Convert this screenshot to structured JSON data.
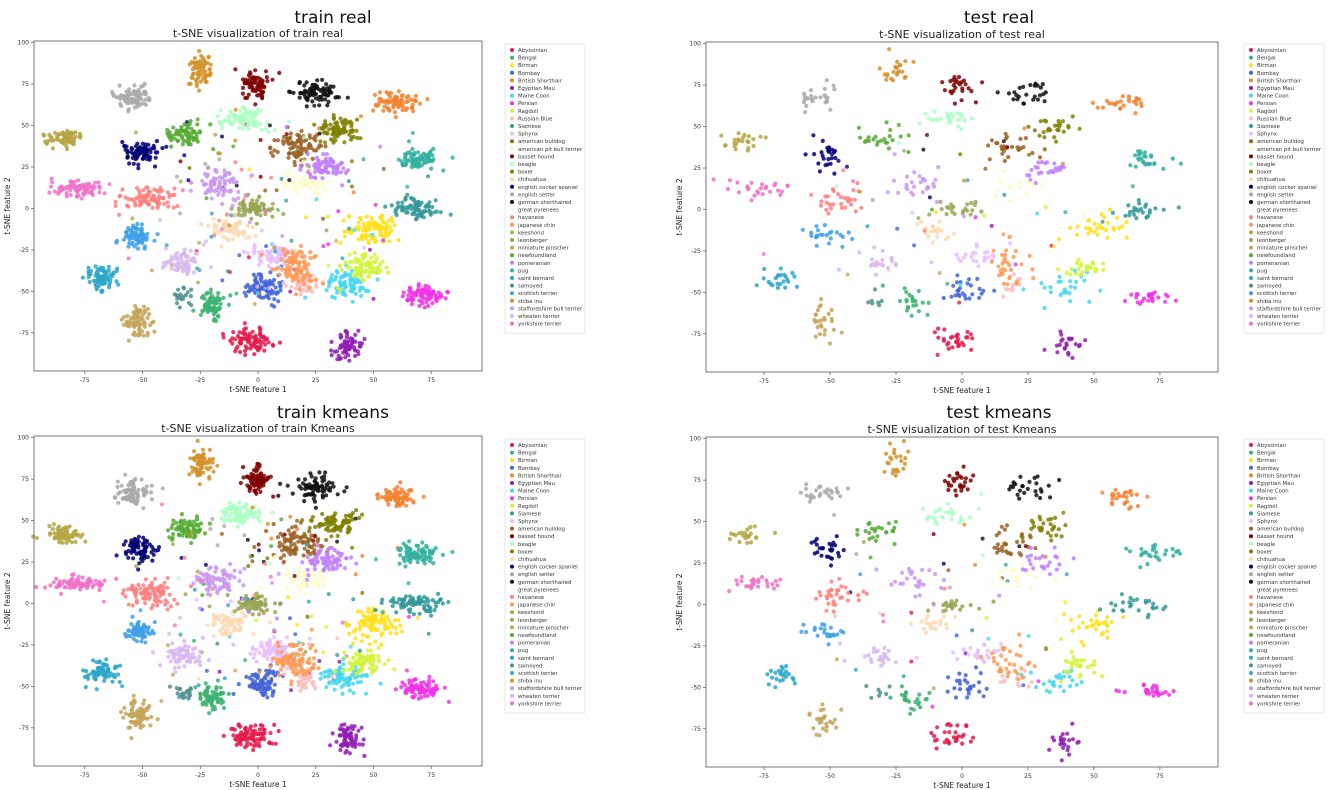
{
  "chart_data": [
    {
      "type": "scatter",
      "panel_title": "train real",
      "title": "t-SNE visualization of train real",
      "xlabel": "t-SNE feature 1",
      "ylabel": "t-SNE feature 2",
      "xlim": [
        -97,
        97
      ],
      "ylim": [
        -98,
        101
      ],
      "xticks": [
        -75,
        -50,
        -25,
        0,
        25,
        50,
        75
      ],
      "yticks": [
        -75,
        -50,
        -25,
        0,
        25,
        50,
        75,
        100
      ],
      "legend_position": "outside-right",
      "legend": [
        "Abyssinian",
        "Bengal",
        "Birman",
        "Bombay",
        "British Shorthair",
        "Egyptian Mau",
        "Maine Coon",
        "Persian",
        "Ragdoll",
        "Russian Blue",
        "Siamese",
        "Sphynx",
        "american bulldog",
        "american pit bull terrier",
        "basset hound",
        "beagle",
        "boxer",
        "chihuahua",
        "english cocker spaniel",
        "english setter",
        "german shorthaired",
        "great pyrenees",
        "havanese",
        "japanese chin",
        "keeshond",
        "leonberger",
        "miniature pinscher",
        "newfoundland",
        "pomeranian",
        "pug",
        "saint bernard",
        "samoyed",
        "scottish terrier",
        "shiba inu",
        "staffordshire bull terrier",
        "wheaten terrier",
        "yorkshire terrier"
      ]
    },
    {
      "type": "scatter",
      "panel_title": "test real",
      "title": "t-SNE visualization of test real",
      "xlabel": "t-SNE feature 1",
      "ylabel": "t-SNE feature 2",
      "xlim": [
        -97,
        97
      ],
      "ylim": [
        -98,
        101
      ],
      "xticks": [
        -75,
        -50,
        -25,
        0,
        25,
        50,
        75
      ],
      "yticks": [
        -75,
        -50,
        -25,
        0,
        25,
        50,
        75,
        100
      ],
      "legend_position": "outside-right",
      "legend": [
        "Abyssinian",
        "Bengal",
        "Birman",
        "Bombay",
        "British Shorthair",
        "Egyptian Mau",
        "Maine Coon",
        "Persian",
        "Ragdoll",
        "Russian Blue",
        "Siamese",
        "Sphynx",
        "american bulldog",
        "american pit bull terrier",
        "basset hound",
        "beagle",
        "boxer",
        "chihuahua",
        "english cocker spaniel",
        "english setter",
        "german shorthaired",
        "great pyrenees",
        "havanese",
        "japanese chin",
        "keeshond",
        "leonberger",
        "miniature pinscher",
        "newfoundland",
        "pomeranian",
        "pug",
        "saint bernard",
        "samoyed",
        "scottish terrier",
        "shiba inu",
        "staffordshire bull terrier",
        "wheaten terrier",
        "yorkshire terrier"
      ]
    },
    {
      "type": "scatter",
      "panel_title": "train kmeans",
      "title": "t-SNE visualization of train Kmeans",
      "xlabel": "t-SNE feature 1",
      "ylabel": "t-SNE feature 2",
      "xlim": [
        -97,
        97
      ],
      "ylim": [
        -98,
        101
      ],
      "xticks": [
        -75,
        -50,
        -25,
        0,
        25,
        50,
        75
      ],
      "yticks": [
        -75,
        -50,
        -25,
        0,
        25,
        50,
        75,
        100
      ],
      "legend_position": "outside-right",
      "legend": [
        "Abyssinian",
        "Bengal",
        "Birman",
        "Bombay",
        "British Shorthair",
        "Egyptian Mau",
        "Maine Coon",
        "Persian",
        "Ragdoll",
        "Siamese",
        "Sphynx",
        "american bulldog",
        "basset hound",
        "beagle",
        "boxer",
        "chihuahua",
        "english cocker spaniel",
        "english setter",
        "german shorthaired",
        "great pyrenees",
        "havanese",
        "japanese chin",
        "keeshond",
        "leonberger",
        "miniature pinscher",
        "newfoundland",
        "pomeranian",
        "pug",
        "saint bernard",
        "samoyed",
        "scottish terrier",
        "shiba inu",
        "staffordshire bull terrier",
        "wheaten terrier",
        "yorkshire terrier"
      ]
    },
    {
      "type": "scatter",
      "panel_title": "test kmeans",
      "title": "t-SNE visualization of test Kmeans",
      "xlabel": "t-SNE feature 1",
      "ylabel": "t-SNE feature 2",
      "xlim": [
        -97,
        97
      ],
      "ylim": [
        -98,
        101
      ],
      "xticks": [
        -75,
        -50,
        -25,
        0,
        25,
        50,
        75
      ],
      "yticks": [
        -75,
        -50,
        -25,
        0,
        25,
        50,
        75,
        100
      ],
      "legend_position": "outside-right",
      "legend": [
        "Abyssinian",
        "Bengal",
        "Birman",
        "Bombay",
        "British Shorthair",
        "Egyptian Mau",
        "Maine Coon",
        "Persian",
        "Ragdoll",
        "Siamese",
        "Sphynx",
        "american bulldog",
        "basset hound",
        "beagle",
        "boxer",
        "chihuahua",
        "english cocker spaniel",
        "english setter",
        "german shorthaired",
        "great pyrenees",
        "havanese",
        "japanese chin",
        "keeshond",
        "leonberger",
        "miniature pinscher",
        "newfoundland",
        "pomeranian",
        "pug",
        "saint bernard",
        "samoyed",
        "scottish terrier",
        "shiba inu",
        "staffordshire bull terrier",
        "wheaten terrier",
        "yorkshire terrier"
      ]
    }
  ],
  "legend_colors": {
    "Abyssinian": "#e6194b",
    "Bengal": "#3cb371",
    "Birman": "#ffe119",
    "Bombay": "#4363d8",
    "British Shorthair": "#f58231",
    "Egyptian Mau": "#911eb4",
    "Maine Coon": "#46d7f0",
    "Persian": "#f032e6",
    "Ragdoll": "#d2f53c",
    "Russian Blue": "#fabebe",
    "Siamese": "#339999",
    "Sphynx": "#e6beff",
    "american bulldog": "#9a6324",
    "american pit bull terrier": "#fffac8",
    "basset hound": "#800000",
    "beagle": "#aaffc3",
    "boxer": "#808000",
    "chihuahua": "#ffd8b1",
    "english cocker spaniel": "#000075",
    "english setter": "#a9a9a9",
    "german shorthaired": "#111111",
    "great pyrenees": "#f7f7f7",
    "havanese": "#ff7f7f",
    "japanese chin": "#ff9955",
    "keeshond": "#b5a642",
    "leonberger": "#9aa655",
    "miniature pinscher": "#c5a55a",
    "newfoundland": "#55aa33",
    "pomeranian": "#bf7fff",
    "pug": "#33b0a0",
    "saint bernard": "#2aa6c8",
    "samoyed": "#4f8f8f",
    "scottish terrier": "#3ea0e8",
    "shiba inu": "#d4922c",
    "staffordshire bull terrier": "#c999ee",
    "wheaten terrier": "#d8b8f0",
    "yorkshire terrier": "#f072c8"
  },
  "clusters": [
    {
      "name": "Abyssinian",
      "cx": -3,
      "cy": -80,
      "rx": 8,
      "ry": 6,
      "n": 90
    },
    {
      "name": "Bengal",
      "cx": -20,
      "cy": -57,
      "rx": 6,
      "ry": 7,
      "n": 70
    },
    {
      "name": "Birman",
      "cx": 50,
      "cy": -12,
      "rx": 9,
      "ry": 8,
      "n": 90
    },
    {
      "name": "Bombay",
      "cx": 2,
      "cy": -48,
      "rx": 7,
      "ry": 7,
      "n": 80
    },
    {
      "name": "British Shorthair",
      "cx": 60,
      "cy": 64,
      "rx": 7,
      "ry": 5,
      "n": 80
    },
    {
      "name": "Egyptian Mau",
      "cx": 39,
      "cy": -82,
      "rx": 5,
      "ry": 7,
      "n": 70
    },
    {
      "name": "Maine Coon",
      "cx": 38,
      "cy": -46,
      "rx": 9,
      "ry": 7,
      "n": 80
    },
    {
      "name": "Persian",
      "cx": 72,
      "cy": -52,
      "rx": 8,
      "ry": 5,
      "n": 80
    },
    {
      "name": "Ragdoll",
      "cx": 46,
      "cy": -35,
      "rx": 7,
      "ry": 6,
      "n": 80
    },
    {
      "name": "Russian Blue",
      "cx": 20,
      "cy": -45,
      "rx": 5,
      "ry": 5,
      "n": 40
    },
    {
      "name": "Siamese",
      "cx": 68,
      "cy": 0,
      "rx": 9,
      "ry": 5,
      "n": 80
    },
    {
      "name": "Sphynx",
      "cx": 7,
      "cy": -28,
      "rx": 8,
      "ry": 6,
      "n": 70
    },
    {
      "name": "american bulldog",
      "cx": 18,
      "cy": 37,
      "rx": 9,
      "ry": 7,
      "n": 90
    },
    {
      "name": "american pit bull terrier",
      "cx": 22,
      "cy": 15,
      "rx": 8,
      "ry": 6,
      "n": 50
    },
    {
      "name": "basset hound",
      "cx": -1,
      "cy": 74,
      "rx": 5,
      "ry": 8,
      "n": 80
    },
    {
      "name": "beagle",
      "cx": -7,
      "cy": 54,
      "rx": 9,
      "ry": 6,
      "n": 80
    },
    {
      "name": "boxer",
      "cx": 34,
      "cy": 48,
      "rx": 8,
      "ry": 6,
      "n": 80
    },
    {
      "name": "chihuahua",
      "cx": -12,
      "cy": -12,
      "rx": 7,
      "ry": 6,
      "n": 60
    },
    {
      "name": "english cocker spaniel",
      "cx": -51,
      "cy": 33,
      "rx": 6,
      "ry": 6,
      "n": 80
    },
    {
      "name": "english setter",
      "cx": -54,
      "cy": 67,
      "rx": 7,
      "ry": 6,
      "n": 80
    },
    {
      "name": "german shorthaired",
      "cx": 25,
      "cy": 70,
      "rx": 8,
      "ry": 6,
      "n": 80
    },
    {
      "name": "havanese",
      "cx": -47,
      "cy": 6,
      "rx": 9,
      "ry": 7,
      "n": 90
    },
    {
      "name": "japanese chin",
      "cx": 17,
      "cy": -35,
      "rx": 8,
      "ry": 10,
      "n": 90
    },
    {
      "name": "keeshond",
      "cx": -84,
      "cy": 42,
      "rx": 7,
      "ry": 4,
      "n": 70
    },
    {
      "name": "leonberger",
      "cx": -2,
      "cy": 0,
      "rx": 7,
      "ry": 5,
      "n": 70
    },
    {
      "name": "miniature pinscher",
      "cx": -52,
      "cy": -68,
      "rx": 5,
      "ry": 8,
      "n": 80
    },
    {
      "name": "newfoundland",
      "cx": -31,
      "cy": 44,
      "rx": 7,
      "ry": 6,
      "n": 70
    },
    {
      "name": "pomeranian",
      "cx": 30,
      "cy": 25,
      "rx": 8,
      "ry": 6,
      "n": 70
    },
    {
      "name": "pug",
      "cx": 70,
      "cy": 30,
      "rx": 8,
      "ry": 5,
      "n": 80
    },
    {
      "name": "saint bernard",
      "cx": -68,
      "cy": -42,
      "rx": 6,
      "ry": 6,
      "n": 70
    },
    {
      "name": "samoyed",
      "cx": -32,
      "cy": -53,
      "rx": 4,
      "ry": 4,
      "n": 20
    },
    {
      "name": "scottish terrier",
      "cx": -52,
      "cy": -17,
      "rx": 6,
      "ry": 6,
      "n": 70
    },
    {
      "name": "shiba inu",
      "cx": -25,
      "cy": 84,
      "rx": 4,
      "ry": 8,
      "n": 70
    },
    {
      "name": "staffordshire bull terrier",
      "cx": -17,
      "cy": 15,
      "rx": 8,
      "ry": 8,
      "n": 80
    },
    {
      "name": "wheaten terrier",
      "cx": -33,
      "cy": -32,
      "rx": 7,
      "ry": 6,
      "n": 70
    },
    {
      "name": "yorkshire terrier",
      "cx": -78,
      "cy": 12,
      "rx": 10,
      "ry": 4,
      "n": 80
    }
  ]
}
